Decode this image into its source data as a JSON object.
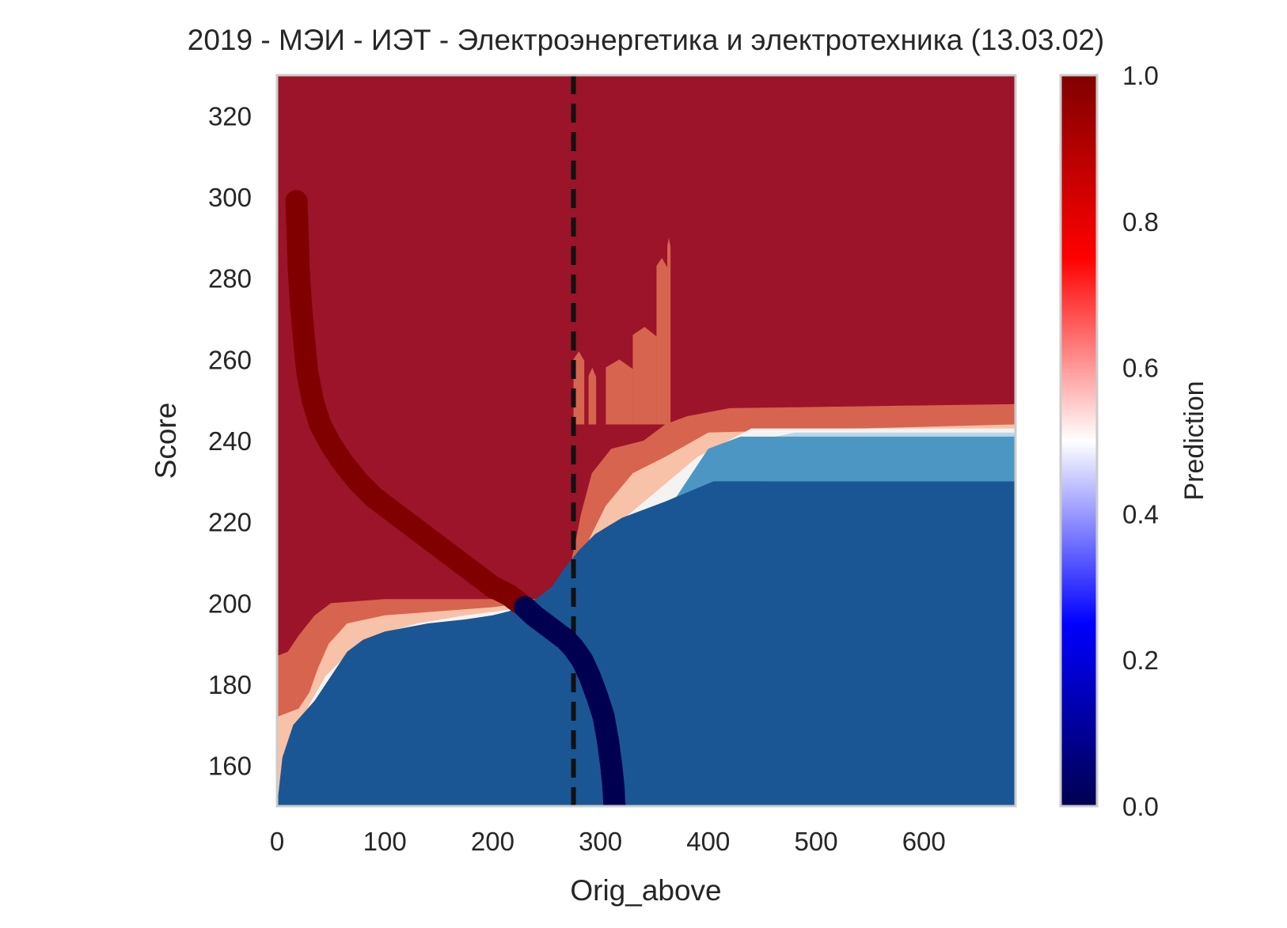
{
  "chart_data": {
    "type": "heatmap",
    "title": "2019 - МЭИ - ИЭТ - Электроэнергетика и электротехника (13.03.02)",
    "xlabel": "Orig_above",
    "ylabel": "Score",
    "xlim": [
      0,
      685
    ],
    "ylim": [
      150,
      330
    ],
    "x_ticks": [
      "0",
      "100",
      "200",
      "300",
      "400",
      "500",
      "600"
    ],
    "y_ticks": [
      "160",
      "180",
      "200",
      "220",
      "240",
      "260",
      "280",
      "300",
      "320"
    ],
    "grid": false,
    "vline": {
      "x": 275,
      "style": "dashed",
      "color": "#111111"
    },
    "colorbar": {
      "label": "Prediction",
      "range": [
        0,
        1
      ],
      "ticks": [
        "0.0",
        "0.2",
        "0.4",
        "0.6",
        "0.8",
        "1.0"
      ],
      "colormap": "seismic"
    },
    "contour_levels": [
      {
        "from": 0.0,
        "to": 0.2,
        "color": "#1b5694"
      },
      {
        "from": 0.2,
        "to": 0.35,
        "color": "#4c96c4"
      },
      {
        "from": 0.35,
        "to": 0.45,
        "color": "#b9d7e8"
      },
      {
        "from": 0.45,
        "to": 0.55,
        "color": "#f4f3f2"
      },
      {
        "from": 0.55,
        "to": 0.65,
        "color": "#f7c2a7"
      },
      {
        "from": 0.65,
        "to": 0.8,
        "color": "#d7644f"
      },
      {
        "from": 0.8,
        "to": 1.0,
        "color": "#9b1429"
      }
    ],
    "boundary_curves": {
      "b1": [
        [
          0,
          150
        ],
        [
          5,
          162
        ],
        [
          15,
          170
        ],
        [
          35,
          176
        ],
        [
          45,
          180
        ],
        [
          55,
          184
        ],
        [
          65,
          188
        ],
        [
          80,
          191
        ],
        [
          100,
          193
        ],
        [
          140,
          195
        ],
        [
          175,
          196
        ],
        [
          200,
          197
        ],
        [
          215,
          198
        ],
        [
          225,
          199
        ],
        [
          240,
          201
        ],
        [
          255,
          204
        ],
        [
          265,
          208
        ],
        [
          280,
          213
        ],
        [
          295,
          217
        ],
        [
          320,
          221
        ],
        [
          360,
          225
        ],
        [
          405,
          230
        ],
        [
          685,
          230
        ]
      ],
      "b2": [
        [
          30,
          150
        ],
        [
          35,
          162
        ],
        [
          45,
          168
        ],
        [
          55,
          174
        ],
        [
          70,
          179
        ],
        [
          90,
          184
        ],
        [
          120,
          188
        ],
        [
          160,
          190
        ],
        [
          185,
          192
        ],
        [
          205,
          194
        ],
        [
          225,
          196
        ],
        [
          240,
          198
        ],
        [
          255,
          201
        ],
        [
          270,
          205
        ],
        [
          280,
          210
        ],
        [
          300,
          214
        ],
        [
          330,
          219
        ],
        [
          365,
          224
        ],
        [
          400,
          238
        ],
        [
          430,
          241
        ],
        [
          685,
          241
        ]
      ],
      "b3": [
        [
          20,
          150
        ],
        [
          25,
          160
        ],
        [
          32,
          168
        ],
        [
          45,
          174
        ],
        [
          60,
          180
        ],
        [
          80,
          186
        ],
        [
          110,
          190
        ],
        [
          150,
          192
        ],
        [
          185,
          194
        ],
        [
          210,
          196
        ],
        [
          230,
          198
        ],
        [
          245,
          200
        ],
        [
          262,
          203
        ],
        [
          275,
          207
        ],
        [
          290,
          212
        ],
        [
          310,
          217
        ],
        [
          345,
          222
        ],
        [
          380,
          228
        ],
        [
          410,
          238
        ],
        [
          480,
          242
        ],
        [
          685,
          242
        ]
      ],
      "b4": [
        [
          8,
          150
        ],
        [
          12,
          160
        ],
        [
          20,
          170
        ],
        [
          32,
          176
        ],
        [
          45,
          182
        ],
        [
          60,
          186
        ],
        [
          90,
          192
        ],
        [
          130,
          195
        ],
        [
          175,
          197
        ],
        [
          205,
          198
        ],
        [
          228,
          199
        ],
        [
          250,
          200
        ],
        [
          270,
          202
        ],
        [
          280,
          207
        ],
        [
          295,
          213
        ],
        [
          318,
          220
        ],
        [
          345,
          226
        ],
        [
          390,
          236
        ],
        [
          440,
          243
        ],
        [
          685,
          243
        ]
      ],
      "b5": [
        [
          0,
          172
        ],
        [
          20,
          174
        ],
        [
          30,
          178
        ],
        [
          38,
          184
        ],
        [
          48,
          190
        ],
        [
          65,
          195
        ],
        [
          100,
          197
        ],
        [
          150,
          198
        ],
        [
          200,
          199
        ],
        [
          230,
          200
        ],
        [
          255,
          201
        ],
        [
          270,
          202
        ],
        [
          278,
          208
        ],
        [
          290,
          216
        ],
        [
          305,
          224
        ],
        [
          330,
          232
        ],
        [
          360,
          236
        ],
        [
          400,
          242
        ],
        [
          685,
          244
        ]
      ],
      "b6": [
        [
          0,
          187
        ],
        [
          10,
          188
        ],
        [
          20,
          192
        ],
        [
          35,
          197
        ],
        [
          50,
          200
        ],
        [
          100,
          201
        ],
        [
          160,
          201
        ],
        [
          215,
          201
        ],
        [
          248,
          201
        ],
        [
          262,
          203
        ],
        [
          270,
          207
        ],
        [
          276,
          214
        ],
        [
          282,
          222
        ],
        [
          292,
          232
        ],
        [
          310,
          238
        ],
        [
          340,
          240
        ],
        [
          360,
          244
        ],
        [
          380,
          246
        ],
        [
          420,
          248
        ],
        [
          685,
          249
        ]
      ]
    },
    "salmon_spikes": [
      {
        "x": [
          275,
          285
        ],
        "top": 262
      },
      {
        "x": [
          289,
          296
        ],
        "top": 258
      },
      {
        "x": [
          305,
          330
        ],
        "top": 260
      },
      {
        "x": [
          330,
          352
        ],
        "top": 268
      },
      {
        "x": [
          352,
          362
        ],
        "top": 285
      },
      {
        "x": [
          362,
          365
        ],
        "top": 290
      }
    ],
    "series": [
      {
        "name": "",
        "color": "#800000",
        "x": [
          18,
          19,
          20,
          22,
          25,
          28,
          33,
          40,
          50,
          60,
          75,
          90,
          110,
          130,
          150,
          170,
          185,
          200,
          215,
          225
        ],
        "y": [
          299,
          292,
          283,
          274,
          265,
          257,
          250,
          244,
          239,
          235,
          230,
          226,
          222,
          218,
          214,
          210,
          207,
          204,
          202,
          200
        ]
      },
      {
        "name": "",
        "color": "#000050",
        "x": [
          230,
          238,
          248,
          258,
          268,
          275,
          283,
          290,
          297,
          303,
          307,
          310,
          312,
          313
        ],
        "y": [
          199,
          197,
          195,
          193,
          191,
          189,
          186,
          182,
          177,
          172,
          166,
          160,
          155,
          150
        ]
      }
    ]
  }
}
